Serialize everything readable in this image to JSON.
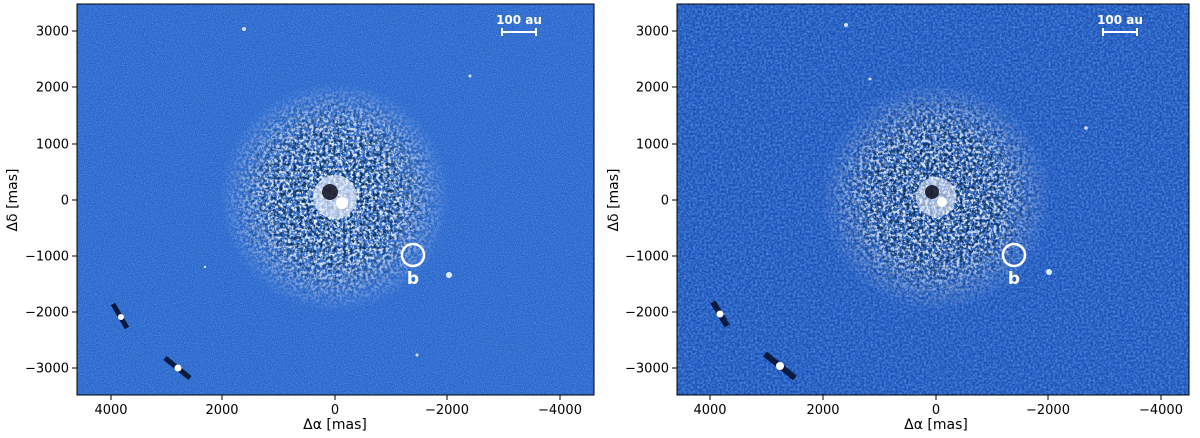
{
  "panels": [
    {
      "id": "left",
      "xlabel": "Δα [mas]",
      "ylabel": "Δδ [mas]",
      "scale_bar_label": "100 au",
      "planet_label": "b",
      "x_ticks": [
        "4000",
        "2000",
        "0",
        "−2000",
        "−4000"
      ],
      "y_ticks": [
        "3000",
        "2000",
        "1000",
        "0",
        "−1000",
        "−2000",
        "−3000"
      ],
      "background_color": "#2a63c8"
    },
    {
      "id": "right",
      "xlabel": "Δα [mas]",
      "ylabel": "Δδ [mas]",
      "scale_bar_label": "100 au",
      "planet_label": "b",
      "x_ticks": [
        "4000",
        "2000",
        "0",
        "−2000",
        "−4000"
      ],
      "y_ticks": [
        "3000",
        "2000",
        "1000",
        "0",
        "−1000",
        "−2000",
        "−3000"
      ],
      "background_color": "#1f52b8"
    }
  ]
}
